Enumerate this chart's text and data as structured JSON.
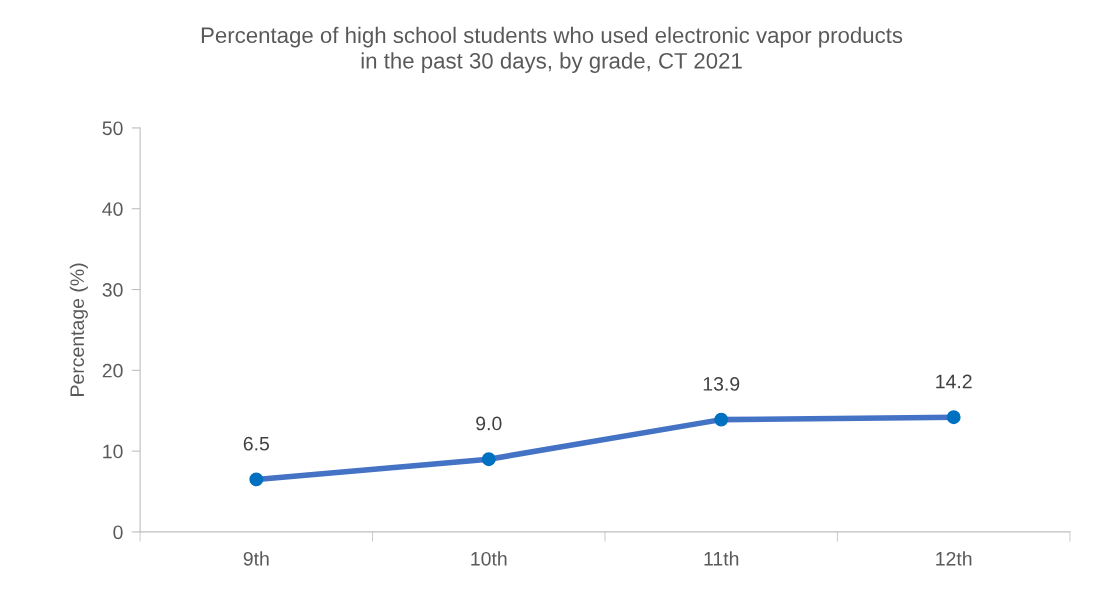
{
  "chart_data": {
    "type": "line",
    "title": "Percentage of high school students who used electronic vapor products\nin the past 30 days, by grade, CT 2021",
    "ylabel": "Percentage (%)",
    "categories": [
      "9th",
      "10th",
      "11th",
      "12th"
    ],
    "series": [
      {
        "color": "#4472c4",
        "values": [
          6.5,
          9.0,
          13.9,
          14.2
        ]
      }
    ],
    "value_labels": [
      "6.5",
      "9.0",
      "13.9",
      "14.2"
    ],
    "ylim": [
      0,
      50
    ],
    "yticks": [
      0,
      10,
      20,
      30,
      40,
      50
    ],
    "marker": "circle",
    "line_style": "solid",
    "grid": false,
    "legend": false
  }
}
